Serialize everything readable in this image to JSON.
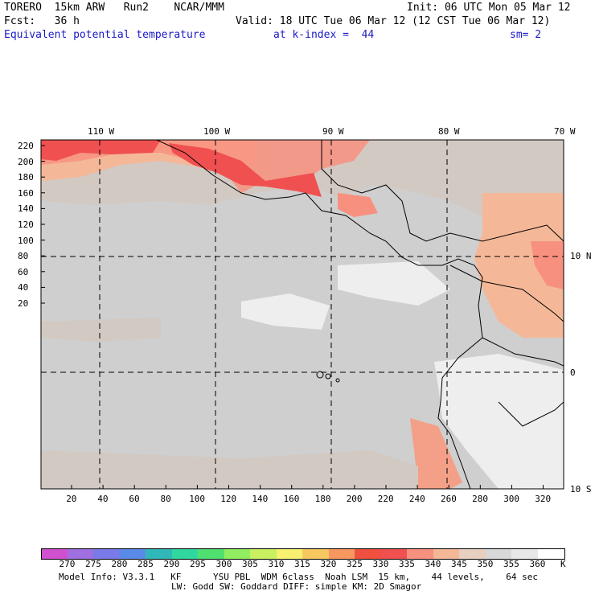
{
  "header": {
    "model_line": "TORERO  15km ARW   Run2    NCAR/MMM",
    "init": "Init: 06 UTC Mon 05 Mar 12",
    "fcst": "Fcst:   36 h",
    "valid": "Valid: 18 UTC Tue 06 Mar 12 (12 CST Tue 06 Mar 12)",
    "field": "Equivalent potential temperature",
    "level": "at k-index =  44",
    "smooth": "sm= 2"
  },
  "map": {
    "top_lon_labels": [
      "110 W",
      "100 W",
      "90 W",
      "80 W",
      "70 W"
    ],
    "right_lat_labels": [
      "10 N",
      "0",
      "10 S"
    ],
    "y_ticks": [
      "220",
      "200",
      "180",
      "160",
      "140",
      "120",
      "100",
      "80",
      "60",
      "40",
      "20"
    ],
    "x_ticks": [
      "20",
      "40",
      "60",
      "80",
      "100",
      "120",
      "140",
      "160",
      "180",
      "200",
      "220",
      "240",
      "260",
      "280",
      "300",
      "320"
    ]
  },
  "colorbar": {
    "levels": [
      "270",
      "275",
      "280",
      "285",
      "290",
      "295",
      "300",
      "305",
      "310",
      "315",
      "320",
      "325",
      "330",
      "335",
      "340",
      "345",
      "350",
      "355",
      "360"
    ],
    "unit": "K",
    "colors": [
      "#d050d0",
      "#a070e0",
      "#7a7ae8",
      "#5a8ae8",
      "#30b8b8",
      "#30d8a0",
      "#50e070",
      "#90ee60",
      "#c8f060",
      "#f8f070",
      "#f8c860",
      "#f89860",
      "#f05040",
      "#f05050",
      "#f89080",
      "#f4b898",
      "#e8d0c0",
      "#d8d8d8",
      "#e8e8e8",
      "#ffffff"
    ]
  },
  "footer": {
    "line1": "Model Info: V3.3.1   KF      YSU PBL  WDM 6class  Noah LSM  15 km,    44 levels,    64 sec",
    "line2": "LW: Godd SW: Goddard DIFF: simple KM: 2D Smagor"
  }
}
